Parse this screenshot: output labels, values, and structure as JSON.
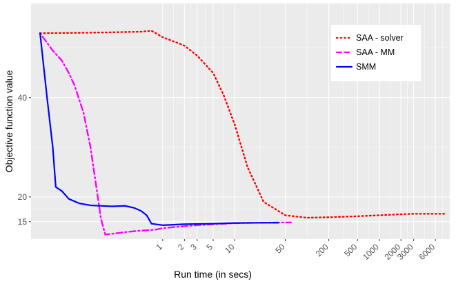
{
  "chart_data": {
    "type": "line",
    "xlabel": "Run time (in secs)",
    "ylabel": "Objective function value",
    "x_scale": "log",
    "x_tick_values": [
      1,
      2,
      3,
      5,
      10,
      50,
      200,
      500,
      1000,
      2000,
      3000,
      6000
    ],
    "x_tick_labels": [
      "1",
      "2",
      "3",
      "5",
      "10",
      "50",
      "200",
      "500",
      "1000",
      "2000",
      "3000",
      "6000"
    ],
    "xlim": [
      0.015,
      9500
    ],
    "y_tick_values": [
      15,
      20,
      40
    ],
    "y_tick_labels": [
      "15",
      "20",
      "40"
    ],
    "ylim": [
      11.5,
      59
    ],
    "grid": true,
    "legend_position": "top-right",
    "series": [
      {
        "name": "SAA - solver",
        "color": "#ff0000",
        "linestyle": "dotted",
        "points": [
          [
            0.02,
            53.0
          ],
          [
            0.1,
            53.1
          ],
          [
            0.5,
            53.3
          ],
          [
            0.7,
            53.5
          ],
          [
            1,
            52.2
          ],
          [
            2,
            50.5
          ],
          [
            3,
            48.5
          ],
          [
            5,
            45.0
          ],
          [
            7,
            40.5
          ],
          [
            10,
            34.5
          ],
          [
            15,
            26.0
          ],
          [
            25,
            19.0
          ],
          [
            50,
            16.3
          ],
          [
            100,
            15.8
          ],
          [
            200,
            15.9
          ],
          [
            500,
            16.1
          ],
          [
            1000,
            16.3
          ],
          [
            2000,
            16.5
          ],
          [
            3000,
            16.6
          ],
          [
            8000,
            16.6
          ]
        ]
      },
      {
        "name": "SAA - MM",
        "color": "#ff00ff",
        "linestyle": "dotdash",
        "points": [
          [
            0.02,
            53.0
          ],
          [
            0.03,
            49.5
          ],
          [
            0.04,
            47.5
          ],
          [
            0.05,
            45.0
          ],
          [
            0.06,
            42.5
          ],
          [
            0.08,
            37.0
          ],
          [
            0.1,
            30.0
          ],
          [
            0.14,
            15.5
          ],
          [
            0.16,
            12.4
          ],
          [
            0.3,
            12.9
          ],
          [
            0.5,
            13.2
          ],
          [
            0.8,
            13.4
          ],
          [
            1,
            13.7
          ],
          [
            2,
            14.1
          ],
          [
            3,
            14.3
          ],
          [
            5,
            14.5
          ],
          [
            10,
            14.7
          ],
          [
            20,
            14.8
          ],
          [
            60,
            14.85
          ]
        ]
      },
      {
        "name": "SMM",
        "color": "#0000ff",
        "linestyle": "solid",
        "points": [
          [
            0.02,
            53.0
          ],
          [
            0.025,
            40.0
          ],
          [
            0.03,
            30.0
          ],
          [
            0.033,
            22.0
          ],
          [
            0.04,
            21.2
          ],
          [
            0.05,
            19.6
          ],
          [
            0.07,
            18.7
          ],
          [
            0.1,
            18.3
          ],
          [
            0.2,
            18.1
          ],
          [
            0.3,
            18.2
          ],
          [
            0.4,
            17.8
          ],
          [
            0.5,
            17.2
          ],
          [
            0.6,
            16.3
          ],
          [
            0.7,
            14.6
          ],
          [
            1,
            14.3
          ],
          [
            2,
            14.5
          ],
          [
            5,
            14.6
          ],
          [
            10,
            14.75
          ],
          [
            30,
            14.8
          ],
          [
            40,
            14.8
          ]
        ]
      }
    ]
  }
}
